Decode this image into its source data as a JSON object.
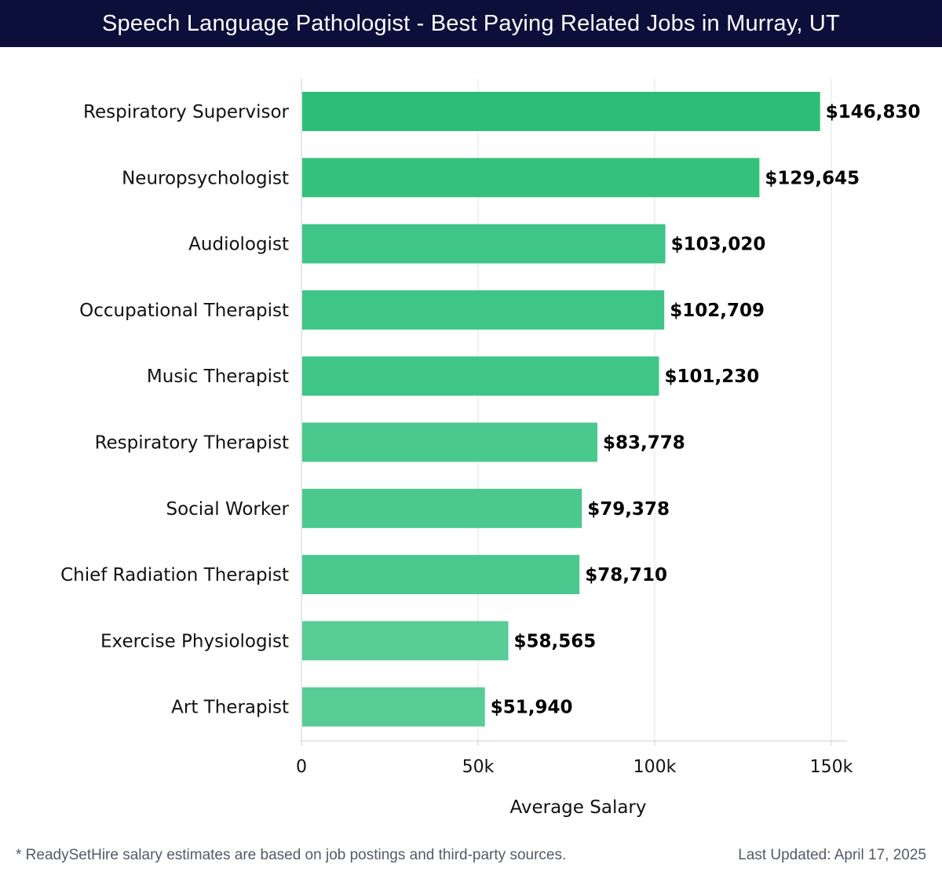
{
  "chart_data": {
    "type": "bar",
    "orientation": "horizontal",
    "title": "Speech Language Pathologist - Best Paying Related Jobs in Murray, UT",
    "xlabel": "Average Salary",
    "ylabel": "",
    "xlim": [
      0,
      150000
    ],
    "x_ticks": [
      0,
      50000,
      100000,
      150000
    ],
    "x_tick_labels": [
      "0",
      "50k",
      "100k",
      "150k"
    ],
    "grid": true,
    "categories": [
      "Respiratory Supervisor",
      "Neuropsychologist",
      "Audiologist",
      "Occupational Therapist",
      "Music Therapist",
      "Respiratory Therapist",
      "Social Worker",
      "Chief Radiation Therapist",
      "Exercise Physiologist",
      "Art Therapist"
    ],
    "values": [
      146830,
      129645,
      103020,
      102709,
      101230,
      83778,
      79378,
      78710,
      58565,
      51940
    ],
    "value_labels": [
      "$146,830",
      "$129,645",
      "$103,020",
      "$102,709",
      "$101,230",
      "$83,778",
      "$79,378",
      "$78,710",
      "$58,565",
      "$51,940"
    ],
    "bar_colors": [
      "#2ebd78",
      "#34c17c",
      "#3ec587",
      "#3ec587",
      "#3ec587",
      "#4bc88e",
      "#4bc88e",
      "#4bc88e",
      "#57cc94",
      "#57cc94"
    ]
  },
  "footer": {
    "note": "* ReadySetHire salary estimates are based on job postings and third-party sources.",
    "updated": "Last Updated: April 17, 2025"
  },
  "colors": {
    "title_bg": "#0c0f3a",
    "grid": "#e3e3e3",
    "axis": "#cccccc"
  }
}
